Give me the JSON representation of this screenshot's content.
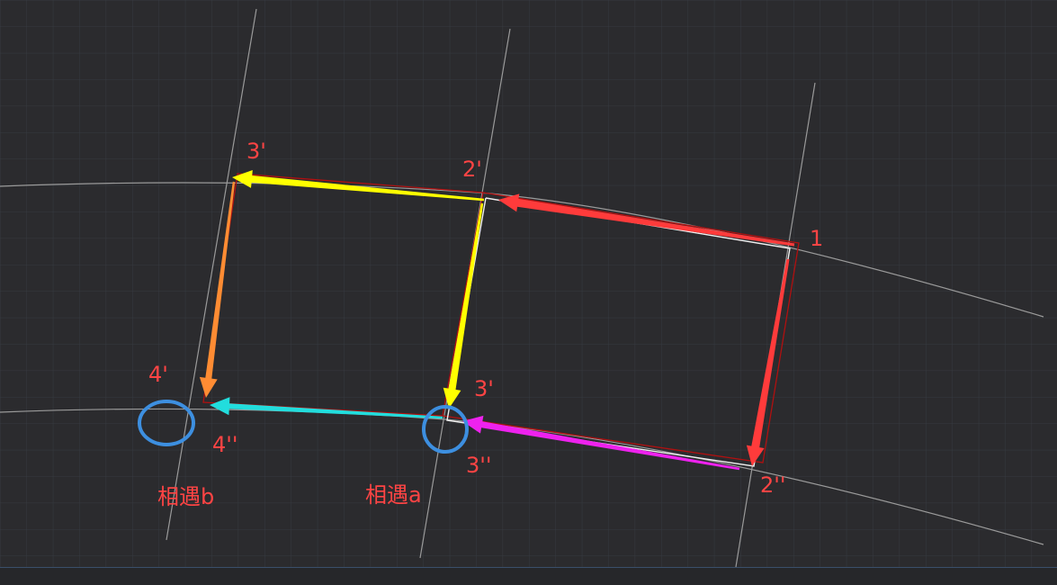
{
  "labels": {
    "p1": "1",
    "p2_prime": "2'",
    "p3_prime_top": "3'",
    "p3_prime_mid": "3'",
    "p4_prime": "4'",
    "p4_dprime": "4''",
    "p3_dprime": "3''",
    "p2_dprime": "2''",
    "meet_b": "相遇b",
    "meet_a": "相遇a"
  },
  "colors": {
    "background": "#2b2b2e",
    "grid": "#363a40",
    "guide_line": "#9a9a9a",
    "label": "#ff4444",
    "arrow_red": "#ff3b3b",
    "arrow_yellow": "#ffff00",
    "arrow_orange": "#ff8c33",
    "arrow_cyan": "#22dddd",
    "arrow_magenta": "#ee22ee",
    "outline_dark_red": "#b01010",
    "outline_white": "#f0f0f0",
    "circle_blue": "#3d8fe0"
  }
}
